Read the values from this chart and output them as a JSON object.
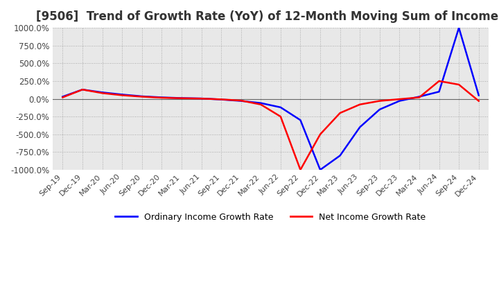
{
  "title": "[9506]  Trend of Growth Rate (YoY) of 12-Month Moving Sum of Incomes",
  "title_fontsize": 12,
  "ylim": [
    -1000,
    1000
  ],
  "yticks": [
    -1000,
    -750,
    -500,
    -250,
    0,
    250,
    500,
    750,
    1000
  ],
  "yticklabels": [
    "-1000.0%",
    "-750.0%",
    "-500.0%",
    "-250.0%",
    "0.0%",
    "250.0%",
    "500.0%",
    "750.0%",
    "1000.0%"
  ],
  "background_color": "#ffffff",
  "plot_bg_color": "#e8e8e8",
  "grid_color": "#aaaaaa",
  "ordinary_color": "#0000ff",
  "net_color": "#ff0000",
  "legend_ordinary": "Ordinary Income Growth Rate",
  "legend_net": "Net Income Growth Rate",
  "x_labels": [
    "Sep-19",
    "Dec-19",
    "Mar-20",
    "Jun-20",
    "Sep-20",
    "Dec-20",
    "Mar-21",
    "Jun-21",
    "Sep-21",
    "Dec-21",
    "Mar-22",
    "Jun-22",
    "Sep-22",
    "Dec-22",
    "Mar-23",
    "Jun-23",
    "Sep-23",
    "Dec-23",
    "Mar-24",
    "Jun-24",
    "Sep-24",
    "Dec-24"
  ],
  "ordinary_y": [
    30,
    130,
    90,
    60,
    35,
    20,
    10,
    5,
    -10,
    -30,
    -60,
    -120,
    -300,
    -1000,
    -800,
    -400,
    -150,
    -30,
    30,
    100,
    1000,
    50
  ],
  "net_y": [
    20,
    130,
    80,
    50,
    30,
    15,
    8,
    3,
    -8,
    -25,
    -80,
    -250,
    -1000,
    -500,
    -200,
    -80,
    -30,
    -5,
    20,
    250,
    200,
    -30
  ]
}
